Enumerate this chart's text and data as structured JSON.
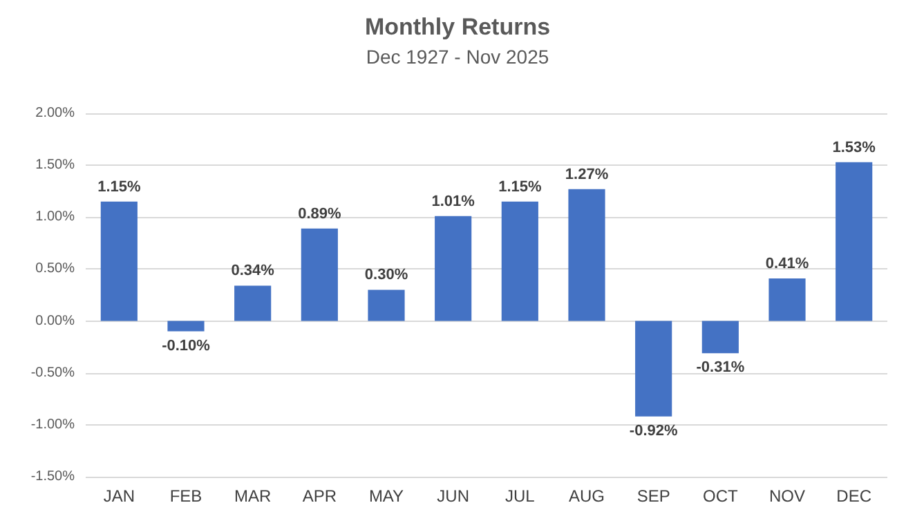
{
  "chart_data": {
    "type": "bar",
    "title": "Monthly Returns",
    "subtitle": "Dec 1927 - Nov 2025",
    "categories": [
      "JAN",
      "FEB",
      "MAR",
      "APR",
      "MAY",
      "JUN",
      "JUL",
      "AUG",
      "SEP",
      "OCT",
      "NOV",
      "DEC"
    ],
    "values": [
      1.15,
      -0.1,
      0.34,
      0.89,
      0.3,
      1.01,
      1.15,
      1.27,
      -0.92,
      -0.31,
      0.41,
      1.53
    ],
    "value_labels": [
      "1.15%",
      "-0.10%",
      "0.34%",
      "0.89%",
      "0.30%",
      "1.01%",
      "1.15%",
      "1.27%",
      "-0.92%",
      "-0.31%",
      "0.41%",
      "1.53%"
    ],
    "color": "#4472c4",
    "ylim": [
      -1.5,
      2
    ],
    "yticks": [
      {
        "value": -1.5,
        "label": "-1.50%"
      },
      {
        "value": -1,
        "label": "-1.00%"
      },
      {
        "value": -0.5,
        "label": "-0.50%"
      },
      {
        "value": 0,
        "label": "0.00%"
      },
      {
        "value": 0.5,
        "label": "0.50%"
      },
      {
        "value": 1,
        "label": "1.00%"
      },
      {
        "value": 1.5,
        "label": "1.50%"
      },
      {
        "value": 2,
        "label": "2.00%"
      }
    ],
    "grid": "y"
  }
}
